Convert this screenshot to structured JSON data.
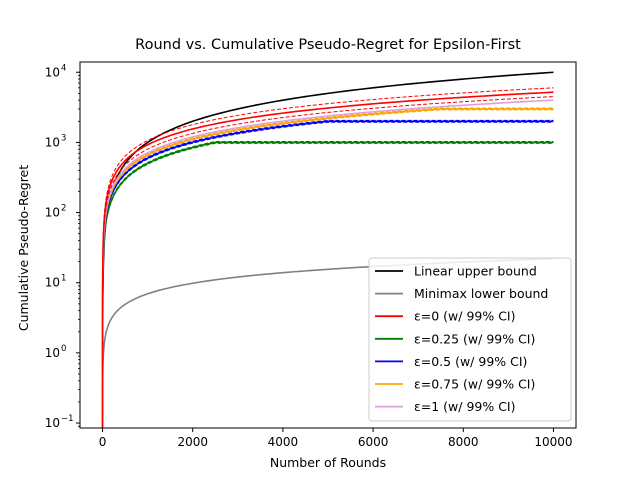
{
  "chart_data": {
    "type": "line",
    "title": "Round vs. Cumulative Pseudo-Regret for Epsilon-First",
    "xlabel": "Number of Rounds",
    "ylabel": "Cumulative Pseudo-Regret",
    "xlim": [
      -500,
      10500
    ],
    "ylim": [
      0.085,
      14000
    ],
    "yscale": "log",
    "grid": false,
    "legend_position": "lower-right",
    "x_ticks": [
      0,
      2000,
      4000,
      6000,
      8000,
      10000
    ],
    "x_tick_labels": [
      "0",
      "2000",
      "4000",
      "6000",
      "8000",
      "10000"
    ],
    "y_ticks": [
      0.1,
      1,
      10,
      100,
      1000,
      10000
    ],
    "y_tick_labels": [
      "10",
      "10",
      "10",
      "10",
      "10",
      "10"
    ],
    "y_tick_exponents": [
      "−1",
      "0",
      "1",
      "2",
      "3",
      "4"
    ],
    "x_max": 10000,
    "series": [
      {
        "name": "Linear upper bound",
        "color": "#000000",
        "kind": "linear"
      },
      {
        "name": "Minimax lower bound",
        "color": "#808080",
        "kind": "sqrt"
      },
      {
        "name": "ε=0 (w/ 99% CI)",
        "color": "#ff0000",
        "kind": "power",
        "final": 5200,
        "lower_final": 4500,
        "upper_final": 6000
      },
      {
        "name": "ε=0.25 (w/ 99% CI)",
        "color": "#008000",
        "kind": "capped",
        "cap": 1000,
        "cap_round": 2500
      },
      {
        "name": "ε=0.5 (w/ 99% CI)",
        "color": "#0000ff",
        "kind": "capped",
        "cap": 2000,
        "cap_round": 5000
      },
      {
        "name": "ε=0.75 (w/ 99% CI)",
        "color": "#ffa500",
        "kind": "capped",
        "cap": 3000,
        "cap_round": 7500
      },
      {
        "name": "ε=1 (w/ 99% CI)",
        "color": "#dda0dd",
        "kind": "power",
        "final": 4000
      }
    ]
  }
}
